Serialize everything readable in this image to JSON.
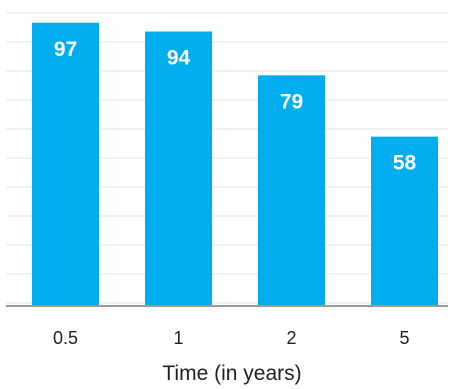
{
  "chart_data": {
    "type": "bar",
    "categories": [
      "0.5",
      "1",
      "2",
      "5"
    ],
    "values": [
      97,
      94,
      79,
      58
    ],
    "title": "",
    "xlabel": "Time (in years)",
    "ylabel": "",
    "ylim": [
      0,
      100
    ],
    "grid": true,
    "colors": {
      "bar": "#00adee",
      "bar_label": "#ffffff"
    }
  }
}
